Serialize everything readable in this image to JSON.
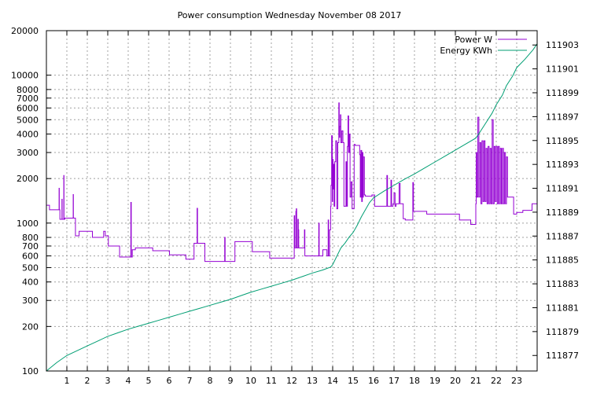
{
  "chart_data": {
    "type": "line",
    "title": "Power consumption Wednesday November 08 2017",
    "xlabel": "",
    "ylabel": "",
    "xlim": [
      0,
      24
    ],
    "ylim": [
      100,
      20000
    ],
    "y_scale": "log",
    "y2lim": [
      111875.7,
      111904.2
    ],
    "grid": true,
    "legend_position": "top-right",
    "x_ticks": [
      "1",
      "2",
      "3",
      "4",
      "5",
      "6",
      "7",
      "8",
      "9",
      "10",
      "11",
      "12",
      "13",
      "14",
      "15",
      "16",
      "17",
      "18",
      "19",
      "20",
      "21",
      "22",
      "23"
    ],
    "y_ticks": [
      "100",
      "200",
      "300",
      "400",
      "500",
      "600",
      "700",
      "800",
      "1000",
      "2000",
      "3000",
      "4000",
      "5000",
      "6000",
      "7000",
      "8000",
      "10000",
      "20000"
    ],
    "y2_ticks": [
      "111877",
      "111879",
      "111881",
      "111883",
      "111885",
      "111887",
      "111889",
      "111891",
      "111893",
      "111895",
      "111897",
      "111899",
      "111901",
      "111903"
    ],
    "series": [
      {
        "name": "Power W",
        "color": "#9400d3",
        "axis": "left",
        "step": true,
        "points": [
          [
            0.0,
            1320
          ],
          [
            0.15,
            1320
          ],
          [
            0.15,
            1230
          ],
          [
            0.6,
            1230
          ],
          [
            0.62,
            1720
          ],
          [
            0.63,
            1230
          ],
          [
            0.66,
            1060
          ],
          [
            0.75,
            1060
          ],
          [
            0.76,
            1450
          ],
          [
            0.77,
            1060
          ],
          [
            0.85,
            2100
          ],
          [
            0.86,
            1060
          ],
          [
            0.9,
            1080
          ],
          [
            1.3,
            1080
          ],
          [
            1.31,
            1560
          ],
          [
            1.32,
            1080
          ],
          [
            1.42,
            820
          ],
          [
            1.6,
            820
          ],
          [
            1.6,
            880
          ],
          [
            2.2,
            880
          ],
          [
            2.25,
            800
          ],
          [
            2.78,
            800
          ],
          [
            2.8,
            880
          ],
          [
            2.86,
            880
          ],
          [
            2.88,
            820
          ],
          [
            3.0,
            820
          ],
          [
            3.03,
            700
          ],
          [
            3.55,
            700
          ],
          [
            3.58,
            590
          ],
          [
            4.1,
            590
          ],
          [
            4.13,
            1380
          ],
          [
            4.15,
            590
          ],
          [
            4.2,
            660
          ],
          [
            4.35,
            680
          ],
          [
            5.2,
            680
          ],
          [
            5.2,
            650
          ],
          [
            6.0,
            650
          ],
          [
            6.02,
            610
          ],
          [
            6.8,
            610
          ],
          [
            6.82,
            570
          ],
          [
            7.2,
            570
          ],
          [
            7.22,
            730
          ],
          [
            7.35,
            730
          ],
          [
            7.37,
            1260
          ],
          [
            7.39,
            730
          ],
          [
            7.7,
            730
          ],
          [
            7.75,
            550
          ],
          [
            8.7,
            550
          ],
          [
            8.72,
            800
          ],
          [
            8.74,
            550
          ],
          [
            9.2,
            550
          ],
          [
            9.22,
            750
          ],
          [
            10.05,
            750
          ],
          [
            10.07,
            640
          ],
          [
            10.9,
            640
          ],
          [
            10.92,
            580
          ],
          [
            12.1,
            580
          ],
          [
            12.12,
            1120
          ],
          [
            12.14,
            680
          ],
          [
            12.2,
            1200
          ],
          [
            12.22,
            1250
          ],
          [
            12.24,
            680
          ],
          [
            12.3,
            1060
          ],
          [
            12.32,
            900
          ],
          [
            12.34,
            680
          ],
          [
            12.6,
            680
          ],
          [
            12.62,
            900
          ],
          [
            12.64,
            600
          ],
          [
            13.3,
            600
          ],
          [
            13.32,
            1000
          ],
          [
            13.34,
            600
          ],
          [
            13.5,
            600
          ],
          [
            13.52,
            660
          ],
          [
            13.7,
            660
          ],
          [
            13.72,
            600
          ],
          [
            13.78,
            1050
          ],
          [
            13.8,
            600
          ],
          [
            13.85,
            900
          ],
          [
            13.9,
            1300
          ],
          [
            13.92,
            1800
          ],
          [
            13.95,
            3900
          ],
          [
            13.98,
            1400
          ],
          [
            14.0,
            2700
          ],
          [
            14.02,
            1700
          ],
          [
            14.05,
            2500
          ],
          [
            14.07,
            1300
          ],
          [
            14.1,
            2600
          ],
          [
            14.15,
            3600
          ],
          [
            14.2,
            1250
          ],
          [
            14.25,
            3500
          ],
          [
            14.3,
            6500
          ],
          [
            14.32,
            3800
          ],
          [
            14.35,
            4500
          ],
          [
            14.38,
            5400
          ],
          [
            14.4,
            3500
          ],
          [
            14.45,
            4200
          ],
          [
            14.5,
            3500
          ],
          [
            14.55,
            1300
          ],
          [
            14.6,
            1300
          ],
          [
            14.65,
            2600
          ],
          [
            14.68,
            1300
          ],
          [
            14.72,
            3300
          ],
          [
            14.75,
            5300
          ],
          [
            14.78,
            3000
          ],
          [
            14.82,
            4000
          ],
          [
            14.85,
            1500
          ],
          [
            14.88,
            1500
          ],
          [
            14.9,
            1900
          ],
          [
            14.95,
            1250
          ],
          [
            15.0,
            1250
          ],
          [
            15.05,
            3400
          ],
          [
            15.1,
            3350
          ],
          [
            15.3,
            3350
          ],
          [
            15.32,
            2900
          ],
          [
            15.35,
            1500
          ],
          [
            15.38,
            3100
          ],
          [
            15.42,
            1400
          ],
          [
            15.45,
            3000
          ],
          [
            15.48,
            1500
          ],
          [
            15.5,
            2800
          ],
          [
            15.55,
            1550
          ],
          [
            15.6,
            1520
          ],
          [
            15.9,
            1520
          ],
          [
            15.92,
            1550
          ],
          [
            16.0,
            1550
          ],
          [
            16.05,
            1300
          ],
          [
            16.6,
            1300
          ],
          [
            16.65,
            2100
          ],
          [
            16.68,
            1300
          ],
          [
            16.8,
            1300
          ],
          [
            16.85,
            1950
          ],
          [
            16.88,
            1300
          ],
          [
            16.95,
            1350
          ],
          [
            17.0,
            1600
          ],
          [
            17.05,
            1300
          ],
          [
            17.1,
            1350
          ],
          [
            17.2,
            1350
          ],
          [
            17.25,
            1850
          ],
          [
            17.3,
            1350
          ],
          [
            17.4,
            1350
          ],
          [
            17.45,
            1070
          ],
          [
            17.55,
            1050
          ],
          [
            17.9,
            1050
          ],
          [
            17.92,
            1880
          ],
          [
            17.95,
            1200
          ],
          [
            18.6,
            1150
          ],
          [
            20.0,
            1150
          ],
          [
            20.2,
            1050
          ],
          [
            20.7,
            1050
          ],
          [
            20.75,
            980
          ],
          [
            20.95,
            980
          ],
          [
            21.0,
            1350
          ],
          [
            21.02,
            3000
          ],
          [
            21.05,
            1500
          ],
          [
            21.1,
            5200
          ],
          [
            21.15,
            1500
          ],
          [
            21.2,
            3500
          ],
          [
            21.25,
            1350
          ],
          [
            21.3,
            3600
          ],
          [
            21.35,
            1400
          ],
          [
            21.4,
            3600
          ],
          [
            21.45,
            1400
          ],
          [
            21.5,
            3200
          ],
          [
            21.55,
            1350
          ],
          [
            21.6,
            3300
          ],
          [
            21.65,
            1350
          ],
          [
            21.7,
            3200
          ],
          [
            21.75,
            1350
          ],
          [
            21.8,
            5000
          ],
          [
            21.85,
            1350
          ],
          [
            21.9,
            3300
          ],
          [
            21.95,
            1400
          ],
          [
            22.0,
            3300
          ],
          [
            22.05,
            1350
          ],
          [
            22.1,
            3300
          ],
          [
            22.15,
            1350
          ],
          [
            22.2,
            3200
          ],
          [
            22.25,
            1350
          ],
          [
            22.3,
            3200
          ],
          [
            22.35,
            1350
          ],
          [
            22.4,
            3000
          ],
          [
            22.45,
            1350
          ],
          [
            22.5,
            2800
          ],
          [
            22.55,
            1500
          ],
          [
            22.6,
            1500
          ],
          [
            22.8,
            1500
          ],
          [
            22.85,
            1150
          ],
          [
            22.9,
            1150
          ],
          [
            23.0,
            1180
          ],
          [
            23.3,
            1220
          ],
          [
            23.7,
            1220
          ],
          [
            23.75,
            1350
          ],
          [
            24.0,
            1350
          ]
        ]
      },
      {
        "name": "Energy KWh",
        "color": "#009e73",
        "axis": "right",
        "step": false,
        "points": [
          [
            0.0,
            111875.7
          ],
          [
            0.5,
            111876.4
          ],
          [
            1.0,
            111877.0
          ],
          [
            1.5,
            111877.4
          ],
          [
            2.0,
            111877.8
          ],
          [
            2.5,
            111878.2
          ],
          [
            3.0,
            111878.6
          ],
          [
            3.5,
            111878.9
          ],
          [
            4.0,
            111879.2
          ],
          [
            4.5,
            111879.45
          ],
          [
            5.0,
            111879.7
          ],
          [
            5.5,
            111879.95
          ],
          [
            6.0,
            111880.2
          ],
          [
            6.5,
            111880.45
          ],
          [
            7.0,
            111880.7
          ],
          [
            7.5,
            111880.95
          ],
          [
            8.0,
            111881.2
          ],
          [
            8.5,
            111881.45
          ],
          [
            9.0,
            111881.7
          ],
          [
            9.5,
            111882.0
          ],
          [
            10.0,
            111882.3
          ],
          [
            10.5,
            111882.55
          ],
          [
            11.0,
            111882.8
          ],
          [
            11.5,
            111883.05
          ],
          [
            12.0,
            111883.3
          ],
          [
            12.5,
            111883.6
          ],
          [
            13.0,
            111883.9
          ],
          [
            13.5,
            111884.15
          ],
          [
            13.9,
            111884.4
          ],
          [
            14.0,
            111884.6
          ],
          [
            14.2,
            111885.3
          ],
          [
            14.4,
            111886.0
          ],
          [
            14.6,
            111886.4
          ],
          [
            14.8,
            111886.9
          ],
          [
            15.0,
            111887.3
          ],
          [
            15.2,
            111887.9
          ],
          [
            15.4,
            111888.6
          ],
          [
            15.6,
            111889.2
          ],
          [
            15.8,
            111889.8
          ],
          [
            16.0,
            111890.2
          ],
          [
            16.5,
            111890.75
          ],
          [
            17.0,
            111891.25
          ],
          [
            17.5,
            111891.75
          ],
          [
            18.0,
            111892.2
          ],
          [
            18.5,
            111892.7
          ],
          [
            19.0,
            111893.2
          ],
          [
            19.5,
            111893.7
          ],
          [
            20.0,
            111894.2
          ],
          [
            20.5,
            111894.7
          ],
          [
            21.0,
            111895.2
          ],
          [
            21.2,
            111895.7
          ],
          [
            21.5,
            111896.5
          ],
          [
            21.8,
            111897.3
          ],
          [
            22.0,
            111898.0
          ],
          [
            22.3,
            111898.8
          ],
          [
            22.5,
            111899.6
          ],
          [
            22.8,
            111900.4
          ],
          [
            23.0,
            111901.1
          ],
          [
            23.4,
            111901.8
          ],
          [
            23.8,
            111902.6
          ],
          [
            24.0,
            111903.1
          ]
        ]
      }
    ]
  }
}
